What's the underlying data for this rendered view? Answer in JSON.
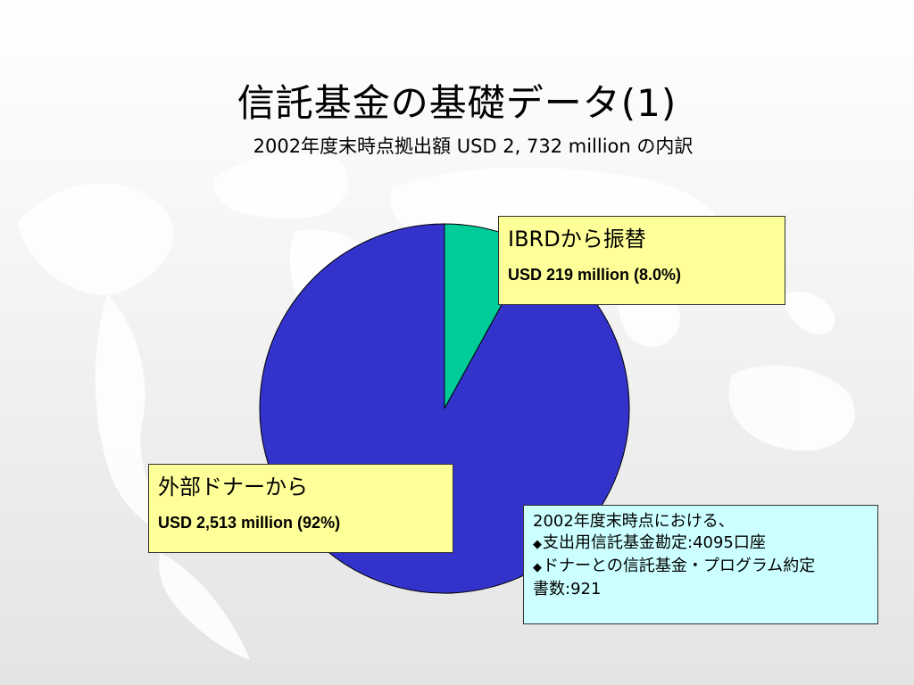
{
  "title": "信託基金の基礎データ(1)",
  "subtitle": "2002年度末時点拠出額 USD 2, 732 million の内訳",
  "chart_data": {
    "type": "pie",
    "title": "",
    "slices": [
      {
        "label": "IBRDから振替",
        "value": 219,
        "percent": 8.0,
        "color": "#00cc99"
      },
      {
        "label": "外部ドナーから",
        "value": 2513,
        "percent": 92,
        "color": "#3333cc"
      }
    ],
    "start_angle": "12 o'clock, clockwise"
  },
  "labels": {
    "ibrd": {
      "head": "IBRDから振替",
      "sub": "USD 219 million (8.0%)"
    },
    "donor": {
      "head": "外部ドナーから",
      "sub": "USD 2,513 million (92%)"
    }
  },
  "notes": {
    "line1": "2002年度末時点における、",
    "bullet": "◆",
    "line2": "支出用信託基金勘定:4095口座",
    "line3": "ドナーとの信託基金・プログラム約定",
    "line4": "書数:921"
  },
  "colors": {
    "box_yellow": "#ffff99",
    "box_cyan": "#ccffff"
  }
}
